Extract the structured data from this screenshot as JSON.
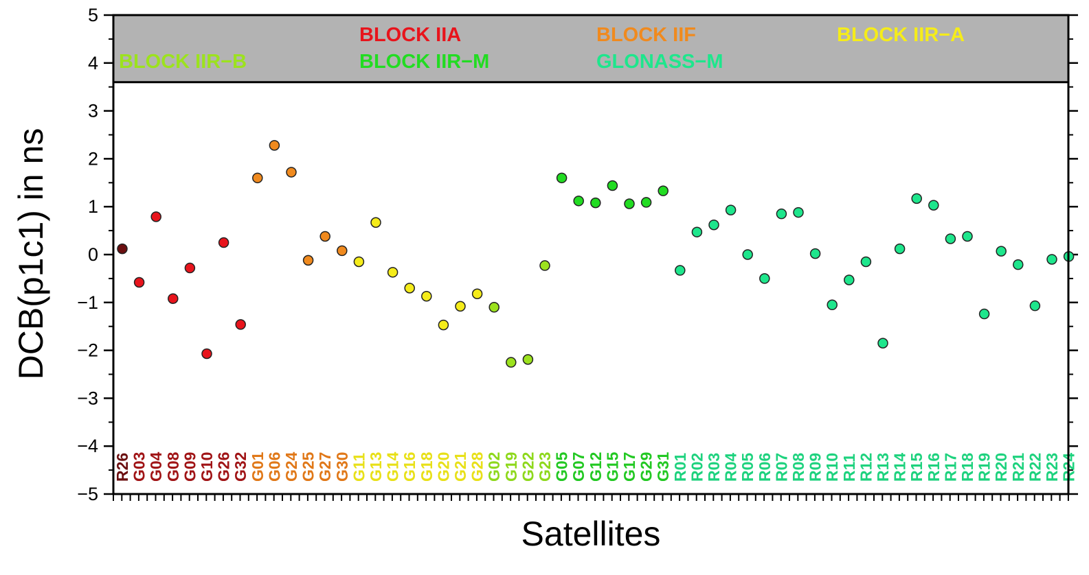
{
  "chart_data": {
    "type": "scatter",
    "xlabel": "Satellites",
    "ylabel": "DCB(p1c1) in ns",
    "ylim": [
      -5,
      5
    ],
    "yticks": [
      "5",
      "4",
      "3",
      "2",
      "1",
      "0",
      "−1",
      "−2",
      "−3",
      "−4",
      "−5"
    ],
    "legend_placement": "top band inside plot",
    "groups": [
      {
        "name": "BLOCK IIA",
        "color": "#e8141c"
      },
      {
        "name": "BLOCK IIF",
        "color": "#f08a1e"
      },
      {
        "name": "BLOCK IIR−A",
        "color": "#f5ec1a"
      },
      {
        "name": "BLOCK IIR−B",
        "color": "#9ce21e"
      },
      {
        "name": "BLOCK IIR−M",
        "color": "#22dc22"
      },
      {
        "name": "GLONASS−M",
        "color": "#1ee68c"
      }
    ],
    "satellites": [
      {
        "label": "R26",
        "value": 0.12,
        "color": "#6b0f10",
        "text_color": "#6b0f10"
      },
      {
        "label": "G03",
        "value": -0.58,
        "color": "#e8141c",
        "text_color": "#a01416"
      },
      {
        "label": "G04",
        "value": 0.79,
        "color": "#e8141c",
        "text_color": "#a01416"
      },
      {
        "label": "G08",
        "value": -0.92,
        "color": "#e8141c",
        "text_color": "#a01416"
      },
      {
        "label": "G09",
        "value": -0.28,
        "color": "#e8141c",
        "text_color": "#a01416"
      },
      {
        "label": "G10",
        "value": -2.07,
        "color": "#e8141c",
        "text_color": "#a01416"
      },
      {
        "label": "G26",
        "value": 0.25,
        "color": "#e8141c",
        "text_color": "#a01416"
      },
      {
        "label": "G32",
        "value": -1.46,
        "color": "#e8141c",
        "text_color": "#a01416"
      },
      {
        "label": "G01",
        "value": 1.6,
        "color": "#f08a1e",
        "text_color": "#e07818"
      },
      {
        "label": "G06",
        "value": 2.28,
        "color": "#f08a1e",
        "text_color": "#e07818"
      },
      {
        "label": "G24",
        "value": 1.72,
        "color": "#f08a1e",
        "text_color": "#e07818"
      },
      {
        "label": "G25",
        "value": -0.12,
        "color": "#f08a1e",
        "text_color": "#e07818"
      },
      {
        "label": "G27",
        "value": 0.38,
        "color": "#f08a1e",
        "text_color": "#e07818"
      },
      {
        "label": "G30",
        "value": 0.08,
        "color": "#f08a1e",
        "text_color": "#e07818"
      },
      {
        "label": "G11",
        "value": -0.15,
        "color": "#f5ec1a",
        "text_color": "#e8e018"
      },
      {
        "label": "G13",
        "value": 0.67,
        "color": "#f5ec1a",
        "text_color": "#e8e018"
      },
      {
        "label": "G14",
        "value": -0.37,
        "color": "#f5ec1a",
        "text_color": "#e8e018"
      },
      {
        "label": "G16",
        "value": -0.7,
        "color": "#f5ec1a",
        "text_color": "#e8e018"
      },
      {
        "label": "G18",
        "value": -0.87,
        "color": "#f5ec1a",
        "text_color": "#e8e018"
      },
      {
        "label": "G20",
        "value": -1.47,
        "color": "#f5ec1a",
        "text_color": "#e8e018"
      },
      {
        "label": "G21",
        "value": -1.08,
        "color": "#f5ec1a",
        "text_color": "#e8e018"
      },
      {
        "label": "G28",
        "value": -0.82,
        "color": "#f5ec1a",
        "text_color": "#e8e018"
      },
      {
        "label": "G02",
        "value": -1.1,
        "color": "#9ce21e",
        "text_color": "#8ed81c"
      },
      {
        "label": "G19",
        "value": -2.25,
        "color": "#9ce21e",
        "text_color": "#8ed81c"
      },
      {
        "label": "G22",
        "value": -2.19,
        "color": "#9ce21e",
        "text_color": "#8ed81c"
      },
      {
        "label": "G23",
        "value": -0.23,
        "color": "#9ce21e",
        "text_color": "#8ed81c"
      },
      {
        "label": "G05",
        "value": 1.6,
        "color": "#22dc22",
        "text_color": "#22c822"
      },
      {
        "label": "G07",
        "value": 1.12,
        "color": "#22dc22",
        "text_color": "#22c822"
      },
      {
        "label": "G12",
        "value": 1.08,
        "color": "#22dc22",
        "text_color": "#22c822"
      },
      {
        "label": "G15",
        "value": 1.44,
        "color": "#22dc22",
        "text_color": "#22c822"
      },
      {
        "label": "G17",
        "value": 1.06,
        "color": "#22dc22",
        "text_color": "#22c822"
      },
      {
        "label": "G29",
        "value": 1.09,
        "color": "#22dc22",
        "text_color": "#22c822"
      },
      {
        "label": "G31",
        "value": 1.33,
        "color": "#22dc22",
        "text_color": "#22c822"
      },
      {
        "label": "R01",
        "value": -0.33,
        "color": "#1ee68c",
        "text_color": "#1ed27e"
      },
      {
        "label": "R02",
        "value": 0.47,
        "color": "#1ee68c",
        "text_color": "#1ed27e"
      },
      {
        "label": "R03",
        "value": 0.62,
        "color": "#1ee68c",
        "text_color": "#1ed27e"
      },
      {
        "label": "R04",
        "value": 0.93,
        "color": "#1ee68c",
        "text_color": "#1ed27e"
      },
      {
        "label": "R05",
        "value": 0.0,
        "color": "#1ee68c",
        "text_color": "#1ed27e"
      },
      {
        "label": "R06",
        "value": -0.5,
        "color": "#1ee68c",
        "text_color": "#1ed27e"
      },
      {
        "label": "R07",
        "value": 0.85,
        "color": "#1ee68c",
        "text_color": "#1ed27e"
      },
      {
        "label": "R08",
        "value": 0.88,
        "color": "#1ee68c",
        "text_color": "#1ed27e"
      },
      {
        "label": "R09",
        "value": 0.02,
        "color": "#1ee68c",
        "text_color": "#1ed27e"
      },
      {
        "label": "R10",
        "value": -1.05,
        "color": "#1ee68c",
        "text_color": "#1ed27e"
      },
      {
        "label": "R11",
        "value": -0.53,
        "color": "#1ee68c",
        "text_color": "#1ed27e"
      },
      {
        "label": "R12",
        "value": -0.15,
        "color": "#1ee68c",
        "text_color": "#1ed27e"
      },
      {
        "label": "R13",
        "value": -1.85,
        "color": "#1ee68c",
        "text_color": "#1ed27e"
      },
      {
        "label": "R14",
        "value": 0.12,
        "color": "#1ee68c",
        "text_color": "#1ed27e"
      },
      {
        "label": "R15",
        "value": 1.17,
        "color": "#1ee68c",
        "text_color": "#1ed27e"
      },
      {
        "label": "R16",
        "value": 1.03,
        "color": "#1ee68c",
        "text_color": "#1ed27e"
      },
      {
        "label": "R17",
        "value": 0.33,
        "color": "#1ee68c",
        "text_color": "#1ed27e"
      },
      {
        "label": "R18",
        "value": 0.38,
        "color": "#1ee68c",
        "text_color": "#1ed27e"
      },
      {
        "label": "R19",
        "value": -1.24,
        "color": "#1ee68c",
        "text_color": "#1ed27e"
      },
      {
        "label": "R20",
        "value": 0.07,
        "color": "#1ee68c",
        "text_color": "#1ed27e"
      },
      {
        "label": "R21",
        "value": -0.21,
        "color": "#1ee68c",
        "text_color": "#1ed27e"
      },
      {
        "label": "R22",
        "value": -1.07,
        "color": "#1ee68c",
        "text_color": "#1ed27e"
      },
      {
        "label": "R23",
        "value": -0.1,
        "color": "#1ee68c",
        "text_color": "#1ed27e"
      },
      {
        "label": "R24",
        "value": -0.04,
        "color": "#1ee68c",
        "text_color": "#1ed27e"
      }
    ],
    "legend_band_color": "#b3b3b3"
  }
}
